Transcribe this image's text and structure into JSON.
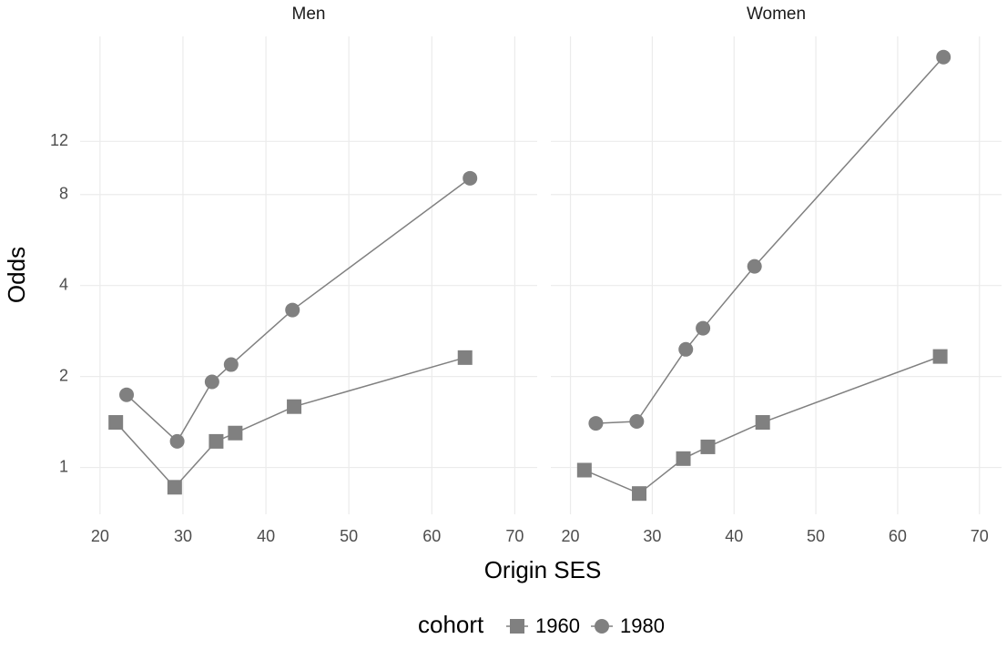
{
  "chart_data": [
    {
      "type": "line",
      "title": "Men",
      "x_label": "Origin SES",
      "y_label": "Odds",
      "legend_title": "cohort",
      "log_y": true,
      "grid": true,
      "xlim": [
        17.6,
        72.7
      ],
      "ylim": [
        0.7,
        26.7
      ],
      "xticks": [
        20,
        30,
        40,
        50,
        60,
        70
      ],
      "yticks": [
        1,
        2,
        4,
        8,
        12
      ],
      "series": [
        {
          "name": "1960",
          "color": "#808080",
          "marker": "square",
          "x": [
            21.9,
            29.0,
            34.0,
            36.3,
            43.4,
            64.0
          ],
          "values": [
            1.41,
            0.86,
            1.22,
            1.3,
            1.59,
            2.31
          ]
        },
        {
          "name": "1980",
          "color": "#808080",
          "marker": "circle",
          "x": [
            23.2,
            29.3,
            33.5,
            35.8,
            43.2,
            64.6
          ],
          "values": [
            1.74,
            1.22,
            1.92,
            2.19,
            3.32,
            9.06
          ]
        }
      ]
    },
    {
      "type": "line",
      "title": "Women",
      "log_y": true,
      "grid": true,
      "xlim": [
        17.6,
        72.7
      ],
      "ylim": [
        0.7,
        26.7
      ],
      "xticks": [
        20,
        30,
        40,
        50,
        60,
        70
      ],
      "yticks": [
        1,
        2,
        4,
        8,
        12
      ],
      "series": [
        {
          "name": "1960",
          "color": "#808080",
          "marker": "square",
          "x": [
            21.7,
            28.4,
            33.8,
            36.8,
            43.5,
            65.2
          ],
          "values": [
            0.98,
            0.82,
            1.07,
            1.17,
            1.41,
            2.33
          ]
        },
        {
          "name": "1980",
          "color": "#808080",
          "marker": "circle",
          "x": [
            23.1,
            28.1,
            34.1,
            36.2,
            42.5,
            65.6
          ],
          "values": [
            1.4,
            1.42,
            2.46,
            2.89,
            4.63,
            22.8
          ]
        }
      ]
    }
  ]
}
